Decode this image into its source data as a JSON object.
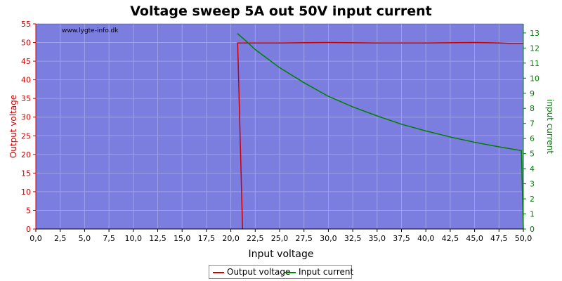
{
  "chart_data": {
    "type": "line",
    "title": "Voltage sweep 5A out 50V input current",
    "watermark": "www.lygte-info.dk",
    "xlabel": "Input voltage",
    "ylabel_left": "Output voltage",
    "ylabel_right": "input current",
    "xlim": [
      0,
      50
    ],
    "ylim_left": [
      0,
      55
    ],
    "ylim_right": [
      0,
      13.6
    ],
    "x_ticks": [
      "0,0",
      "2,5",
      "5,0",
      "7,5",
      "10,0",
      "12,5",
      "15,0",
      "17,5",
      "20,0",
      "22,5",
      "25,0",
      "27,5",
      "30,0",
      "32,5",
      "35,0",
      "37,5",
      "40,0",
      "42,5",
      "45,0",
      "47,5",
      "50,0"
    ],
    "y_left_ticks": [
      "0",
      "5",
      "10",
      "15",
      "20",
      "25",
      "30",
      "35",
      "40",
      "45",
      "50",
      "55"
    ],
    "y_right_ticks": [
      "0",
      "1",
      "2",
      "3",
      "4",
      "5",
      "6",
      "7",
      "8",
      "9",
      "10",
      "11",
      "12",
      "13"
    ],
    "grid": true,
    "legend_position": "bottom",
    "plot_background": "#7b7ddf",
    "series": [
      {
        "name": "Output voltage",
        "axis": "left",
        "color": "#cc0000",
        "x": [
          21.2,
          20.7,
          21.5,
          25,
          30,
          35,
          40,
          45,
          47.5,
          48.5,
          50
        ],
        "y": [
          0,
          49.9,
          49.9,
          49.9,
          50.0,
          49.9,
          49.9,
          50.0,
          49.9,
          49.8,
          49.8
        ]
      },
      {
        "name": "Input current",
        "axis": "right",
        "color": "#008000",
        "x": [
          20.7,
          21.5,
          22.5,
          25,
          27.5,
          30,
          32.5,
          35,
          37.5,
          40,
          42.5,
          45,
          47.5,
          49.8,
          50.0
        ],
        "y": [
          12.95,
          12.5,
          11.9,
          10.7,
          9.7,
          8.8,
          8.1,
          7.5,
          6.95,
          6.5,
          6.1,
          5.75,
          5.45,
          5.2,
          0
        ]
      }
    ]
  }
}
